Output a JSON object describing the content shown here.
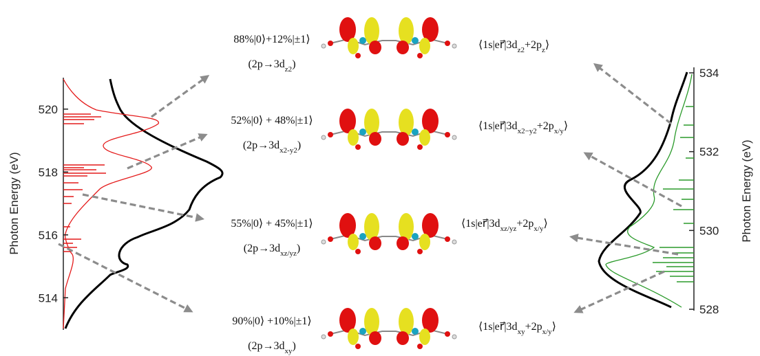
{
  "left_axis": {
    "label": "Photon Energy (eV)",
    "ylim": [
      513,
      521
    ],
    "yticks": [
      514,
      516,
      518,
      520
    ]
  },
  "right_axis": {
    "label": "Photon Energy (eV)",
    "ylim": [
      528,
      534
    ],
    "yticks": [
      528,
      530,
      532,
      534
    ]
  },
  "transitions": [
    {
      "weights": "88%|0⟩+12%|±1⟩",
      "orbital": [
        "(2p→3d",
        "z2",
        ")"
      ],
      "matrix_element": [
        "⟨1s|er⃗|3d",
        "z2",
        "+2p",
        "z",
        "⟩"
      ]
    },
    {
      "weights": "52%|0⟩ + 48%|±1⟩",
      "orbital": [
        "(2p→3d",
        "x2-y2",
        ")"
      ],
      "matrix_element": [
        "⟨1s|er⃗|3d",
        "x2−y2",
        "+2p",
        "x/y",
        "⟩"
      ]
    },
    {
      "weights": "55%|0⟩ + 45%|±1⟩",
      "orbital": [
        "(2p→3d",
        "xz/yz",
        ")"
      ],
      "matrix_element": [
        "⟨1s|er⃗|3d",
        "xz/yz",
        "+2p",
        "x/y",
        "⟩"
      ]
    },
    {
      "weights": "90%|0⟩ +10%|±1⟩",
      "orbital": [
        "(2p→3d",
        "xy",
        ")"
      ],
      "matrix_element": [
        "⟨1s|er⃗|3d",
        "xy",
        "+2p",
        "x/y",
        "⟩"
      ]
    }
  ]
}
